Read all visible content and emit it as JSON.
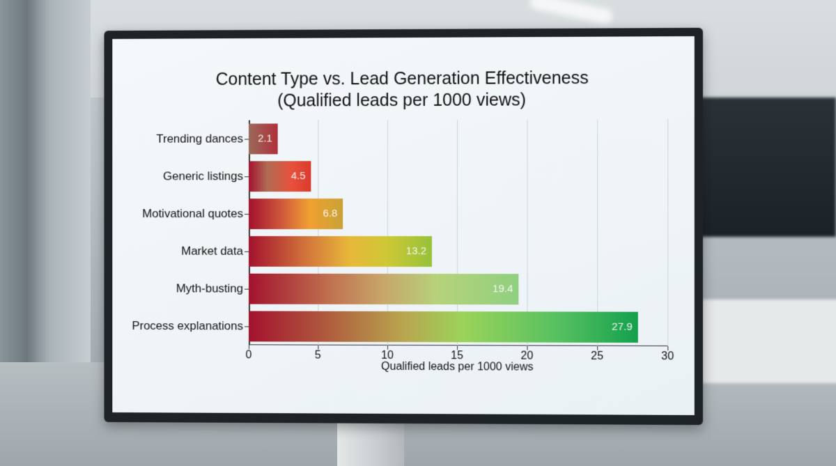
{
  "chart_data": {
    "type": "bar",
    "orientation": "horizontal",
    "title": "Content Type vs. Lead Generation Effectiveness",
    "subtitle": "(Qualified leads per 1000 views)",
    "categories": [
      "Trending dances",
      "Generic listings",
      "Motivational quotes",
      "Market data",
      "Myth-busting",
      "Process explanations"
    ],
    "values": [
      2.1,
      4.5,
      6.8,
      13.2,
      19.4,
      27.9
    ],
    "value_labels": [
      "2.1",
      "4.5",
      "6.8",
      "13.2",
      "19.4",
      "27.9"
    ],
    "xlabel": "Qualified leads per 1000 views",
    "ylabel": "",
    "xlim": [
      0,
      30
    ],
    "xticks": [
      "0",
      "5",
      "10",
      "15",
      "20",
      "25",
      "30"
    ],
    "grid": "vertical",
    "legend": "none",
    "bar_gradient_colors": {
      "start": "#a3122e",
      "mid_warm": "#f0a030",
      "mid_green": "#9bd35a",
      "end": "#14a04e"
    }
  },
  "scene": {
    "description": "Chart displayed on a monitor in a blurred office meeting room"
  }
}
